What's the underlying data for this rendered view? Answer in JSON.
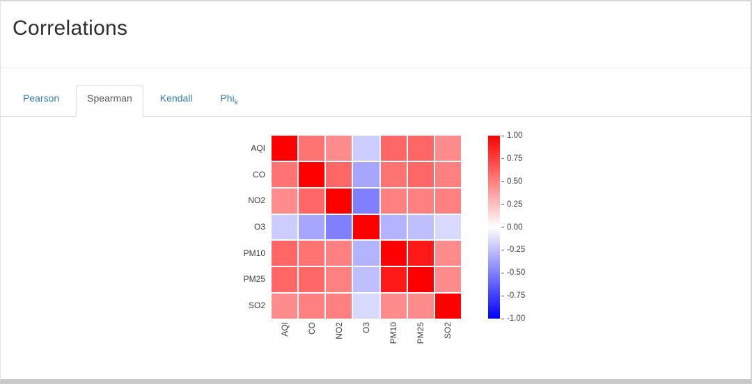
{
  "page": {
    "title": "Correlations"
  },
  "tabs": {
    "items": [
      {
        "label": "Pearson",
        "active": false
      },
      {
        "label": "Spearman",
        "active": true
      },
      {
        "label": "Kendall",
        "active": false
      },
      {
        "label": "Phi",
        "sub": "k",
        "active": false
      }
    ]
  },
  "chart_data": {
    "type": "heatmap",
    "variables": [
      "AQI",
      "CO",
      "NO2",
      "O3",
      "PM10",
      "PM25",
      "SO2"
    ],
    "matrix": [
      [
        1.0,
        0.55,
        0.45,
        -0.2,
        0.6,
        0.6,
        0.45
      ],
      [
        0.55,
        1.0,
        0.6,
        -0.35,
        0.55,
        0.6,
        0.5
      ],
      [
        0.45,
        0.6,
        1.0,
        -0.5,
        0.5,
        0.5,
        0.5
      ],
      [
        -0.2,
        -0.35,
        -0.5,
        1.0,
        -0.3,
        -0.25,
        -0.15
      ],
      [
        0.6,
        0.55,
        0.5,
        -0.3,
        1.0,
        0.9,
        0.45
      ],
      [
        0.6,
        0.6,
        0.5,
        -0.25,
        0.9,
        1.0,
        0.45
      ],
      [
        0.45,
        0.5,
        0.5,
        -0.15,
        0.45,
        0.45,
        1.0
      ]
    ],
    "colormap": "bwr",
    "vmin": -1,
    "vmax": 1,
    "color_positive": "#ff0000",
    "color_negative": "#0000ff",
    "gridlines": true,
    "colorbar_position": "right",
    "colorbar_ticks": [
      "1.00",
      "0.75",
      "0.50",
      "0.25",
      "0.00",
      "-0.25",
      "-0.50",
      "-0.75",
      "-1.00"
    ]
  },
  "colors": {
    "tab_link": "#337ab7",
    "tab_active_text": "#555555",
    "tab_border": "#dddddd",
    "title_text": "#2d2d2d"
  }
}
